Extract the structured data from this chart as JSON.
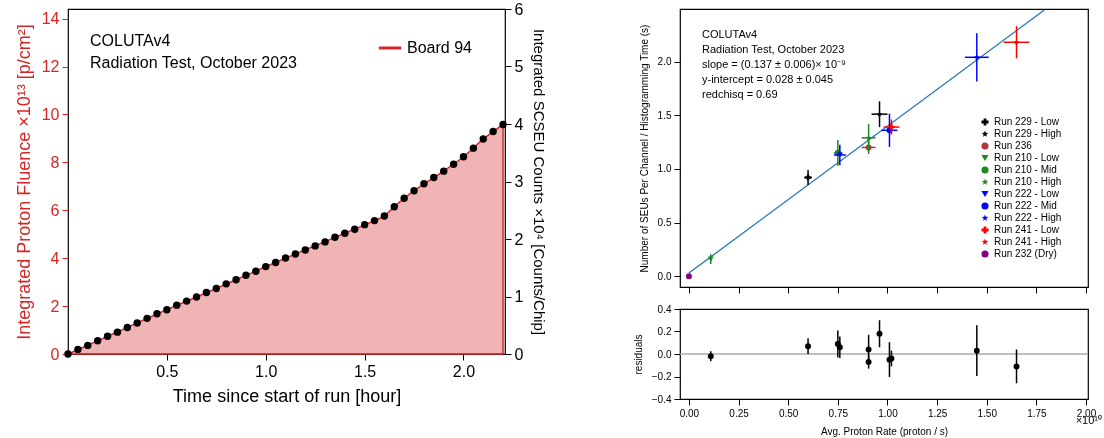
{
  "chart_data": [
    {
      "type": "area",
      "xlabel": "Time since start of run [hour]",
      "ylabel": "Integrated Proton Fluence ×10¹³ [p/cm²]",
      "y2label": "Integrated SCSEU Counts ×10⁴ [Counts/Chip]",
      "annotations": [
        "COLUTAv4",
        "Radiation Test, October 2023"
      ],
      "x": [
        0,
        0.05,
        0.1,
        0.15,
        0.2,
        0.25,
        0.3,
        0.35,
        0.4,
        0.45,
        0.5,
        0.55,
        0.6,
        0.65,
        0.7,
        0.75,
        0.8,
        0.85,
        0.9,
        0.95,
        1.0,
        1.05,
        1.1,
        1.15,
        1.2,
        1.25,
        1.3,
        1.35,
        1.4,
        1.45,
        1.5,
        1.55,
        1.6,
        1.65,
        1.7,
        1.75,
        1.8,
        1.85,
        1.9,
        1.95,
        2.0,
        2.05,
        2.1,
        2.15,
        2.2
      ],
      "series": [
        {
          "name": "Board 94",
          "color": "#d62728",
          "values": [
            0,
            0.18,
            0.37,
            0.55,
            0.74,
            0.92,
            1.11,
            1.3,
            1.48,
            1.67,
            1.85,
            2.03,
            2.2,
            2.38,
            2.56,
            2.74,
            2.92,
            3.1,
            3.28,
            3.46,
            3.65,
            3.82,
            4.0,
            4.17,
            4.35,
            4.52,
            4.69,
            4.87,
            5.04,
            5.21,
            5.39,
            5.56,
            5.75,
            6.15,
            6.5,
            6.82,
            7.1,
            7.36,
            7.63,
            7.93,
            8.22,
            8.6,
            8.98,
            9.28,
            9.58
          ]
        },
        {
          "type": "scatter",
          "axis": "y2",
          "color": "#000000",
          "marker": "circle",
          "values": [
            0,
            0.08,
            0.15,
            0.23,
            0.31,
            0.38,
            0.46,
            0.54,
            0.62,
            0.7,
            0.77,
            0.85,
            0.92,
            0.99,
            1.07,
            1.14,
            1.22,
            1.29,
            1.37,
            1.44,
            1.52,
            1.59,
            1.67,
            1.74,
            1.81,
            1.88,
            1.95,
            2.03,
            2.1,
            2.17,
            2.25,
            2.32,
            2.4,
            2.56,
            2.71,
            2.84,
            2.96,
            3.07,
            3.18,
            3.3,
            3.43,
            3.58,
            3.74,
            3.87,
            3.99
          ]
        }
      ],
      "xlim": [
        0,
        2.21
      ],
      "xticks": [
        0.5,
        {
          "value": 1,
          "label": "1.0"
        },
        1.5,
        {
          "value": 2,
          "label": "2.0"
        }
      ],
      "ylim": [
        0,
        14.4
      ],
      "yticks": [
        0,
        2,
        4,
        6,
        8,
        10,
        12,
        14
      ],
      "y2lim": [
        0,
        6
      ],
      "y2ticks": [
        0,
        1,
        2,
        3,
        4,
        5,
        6
      ],
      "legend": "top right"
    },
    {
      "type": "scatter",
      "ylabel": "Number of SEUs Per Channel / Histogramming Time (s)",
      "annotations": [
        "COLUTAv4",
        "Radiation Test, October 2023",
        "slope = (0.137 ± 0.006)× 10⁻⁹",
        "y-intercept = 0.028 ± 0.045",
        "redchisq = 0.69"
      ],
      "series": [
        {
          "type": "line",
          "color": "#1f77b4",
          "x": [
            0,
            1.79
          ],
          "values": [
            0.03,
            2.48
          ]
        },
        {
          "name": "Run 229 - Low",
          "color": "#000000",
          "marker": "cross",
          "x": [
            0.6
          ],
          "values": [
            0.92
          ],
          "errors": [
            0.07
          ],
          "xerrors": [
            0.02
          ]
        },
        {
          "name": "Run 229 - High",
          "color": "#000000",
          "marker": "star",
          "x": [
            0.96
          ],
          "values": [
            1.51
          ],
          "errors": [
            0.12
          ],
          "xerrors": [
            0.04
          ]
        },
        {
          "name": "Run 236",
          "color": "#b03a3a",
          "marker": "circle",
          "x": [
            0.905
          ],
          "values": [
            1.2
          ],
          "errors": [
            0.06
          ],
          "xerrors": [
            0.035
          ]
        },
        {
          "name": "Run 210 - Low",
          "color": "#1a8a1a",
          "marker": "triangle",
          "x": [
            0.11
          ],
          "values": [
            0.16
          ],
          "errors": [
            0.045
          ]
        },
        {
          "name": "Run 210 - Mid",
          "color": "#1a8a1a",
          "marker": "circle",
          "x": [
            0.75
          ],
          "values": [
            1.15
          ],
          "errors": [
            0.12
          ],
          "xerrors": [
            0.02
          ]
        },
        {
          "name": "Run 210 - High",
          "color": "#1a8a1a",
          "marker": "star",
          "x": [
            0.905
          ],
          "values": [
            1.29
          ],
          "errors": [
            0.13
          ],
          "xerrors": [
            0.035
          ]
        },
        {
          "name": "Run 222 - Low",
          "color": "#0000ff",
          "marker": "triangle",
          "x": [
            0.76
          ],
          "values": [
            1.13
          ],
          "errors": [
            0.095
          ],
          "xerrors": [
            0.03
          ]
        },
        {
          "name": "Run 222 - Mid",
          "color": "#0000ff",
          "marker": "circle",
          "x": [
            1.01
          ],
          "values": [
            1.36
          ],
          "errors": [
            0.155
          ],
          "xerrors": [
            0.04
          ]
        },
        {
          "name": "Run 222 - High",
          "color": "#0000ff",
          "marker": "star",
          "x": [
            1.45
          ],
          "values": [
            2.04
          ],
          "errors": [
            0.225
          ],
          "xerrors": [
            0.06
          ]
        },
        {
          "name": "Run 241 - Low",
          "color": "#ff0000",
          "marker": "cross",
          "x": [
            1.02
          ],
          "values": [
            1.39
          ],
          "errors": [
            0.07
          ],
          "xerrors": [
            0.04
          ]
        },
        {
          "name": "Run 241 - High",
          "color": "#ff0000",
          "marker": "star",
          "x": [
            1.65
          ],
          "values": [
            2.18
          ],
          "errors": [
            0.15
          ],
          "xerrors": [
            0.065
          ]
        },
        {
          "name": "Run 232 (Dry)",
          "color": "#800080",
          "marker": "circle",
          "x": [
            0
          ],
          "values": [
            0
          ]
        }
      ],
      "xlim": [
        -0.045,
        2.01
      ],
      "xticks": [
        0,
        0.25,
        0.5,
        0.75,
        1,
        1.25,
        1.5,
        1.75,
        2
      ],
      "ylim": [
        -0.1,
        2.49
      ],
      "yticks": [
        {
          "value": 0,
          "label": "0.0"
        },
        0.5,
        {
          "value": 1,
          "label": "1.0"
        },
        1.5,
        {
          "value": 2,
          "label": "2.0"
        }
      ],
      "tick_labels": "y",
      "legend": "bottom right"
    },
    {
      "type": "scatter",
      "xlabel": "Avg. Proton Rate (proton / s)",
      "ylabel": "residuals",
      "annotations": [
        "×10¹⁰"
      ],
      "series": [
        {
          "color": "#000000",
          "x": [
            0.11,
            0.6,
            0.75,
            0.76,
            0.905,
            0.905,
            0.96,
            1.01,
            1.02,
            1.45,
            1.65
          ],
          "values": [
            -0.02,
            0.07,
            0.09,
            0.06,
            -0.07,
            0.04,
            0.18,
            -0.05,
            -0.04,
            0.03,
            -0.11
          ],
          "errors": [
            0.045,
            0.07,
            0.12,
            0.095,
            0.06,
            0.13,
            0.12,
            0.155,
            0.07,
            0.225,
            0.15
          ]
        }
      ],
      "ref_lines": [
        {
          "axis": "y",
          "value": 0,
          "color": "#aaaaaa"
        }
      ],
      "xlim": [
        -0.045,
        2.01
      ],
      "xticks": [
        {
          "value": 0,
          "label": "0.00"
        },
        0.25,
        {
          "value": 0.5,
          "label": "0.50"
        },
        0.75,
        {
          "value": 1,
          "label": "1.00"
        },
        1.25,
        {
          "value": 1.5,
          "label": "1.50"
        },
        1.75,
        {
          "value": 2,
          "label": "2.00"
        }
      ],
      "ylim": [
        -0.4,
        0.4
      ],
      "yticks": [
        -0.4,
        -0.2,
        {
          "value": 0,
          "label": "0.0"
        },
        0.2,
        0.4
      ],
      "marker": "circle"
    }
  ]
}
